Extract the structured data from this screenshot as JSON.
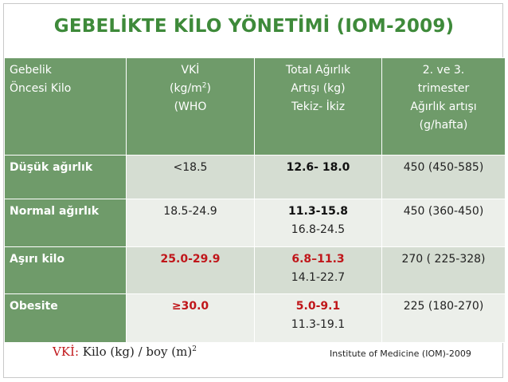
{
  "title": "GEBELİKTE KİLO YÖNETİMİ (IOM-2009)",
  "headers": {
    "col1": [
      "Gebelik",
      "Öncesi Kilo"
    ],
    "col2": [
      "VKİ",
      "(kg/m",
      "2",
      ")",
      "(WHO"
    ],
    "col3": [
      "Total Ağırlık",
      "Artışı (kg)",
      "Tekiz- İkiz"
    ],
    "col4": [
      "2. ve 3.",
      "trimester",
      "Ağırlık artışı",
      "(g/hafta)"
    ]
  },
  "rows": [
    {
      "label": "Düşük ağırlık",
      "bmi": "<18.5",
      "gain_single": "12.6- 18.0",
      "gain_twin": "",
      "rate": "450 (450-585)"
    },
    {
      "label": "Normal ağırlık",
      "bmi": "18.5-24.9",
      "gain_single": "11.3-15.8",
      "gain_twin": "16.8-24.5",
      "rate": "450 (360-450)"
    },
    {
      "label": "Aşırı kilo",
      "bmi": "25.0-29.9",
      "gain_single": "6.8–11.3",
      "gain_twin": "14.1-22.7",
      "rate": "270  ( 225-328)"
    },
    {
      "label": "Obesite",
      "bmi": "≥30.0",
      "gain_single": "5.0-9.1",
      "gain_twin": "11.3-19.1",
      "rate": "225 (180-270)"
    }
  ],
  "footer": {
    "formula_prefix": "VKİ:",
    "formula_text": " Kilo (kg) / boy (m)",
    "formula_sup": "2",
    "source": "Institute of Medicine (IOM)-2009"
  },
  "colors": {
    "title": "#3e8a3a",
    "header_bg": "#6f9b6a",
    "row_light": "#d5ddd2",
    "row_lighter": "#ecefea",
    "highlight": "#c0161a"
  }
}
